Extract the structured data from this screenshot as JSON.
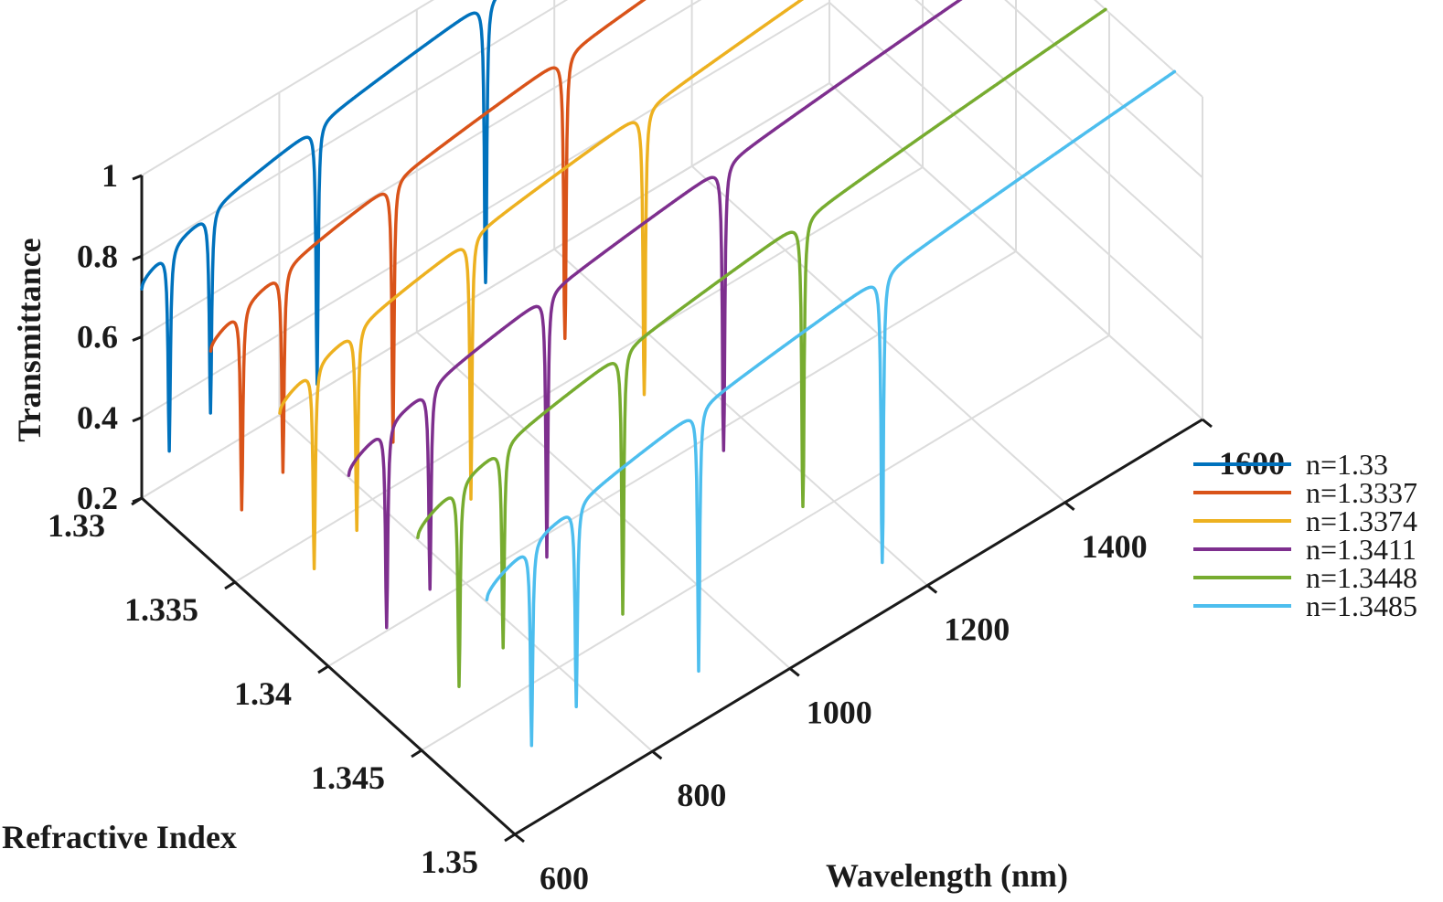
{
  "chart_data": {
    "type": "line",
    "title": "",
    "xlabel": "Wavelength (nm)",
    "ylabel": "Refractive Index",
    "zlabel": "Transmittance",
    "xlim": [
      600,
      1600
    ],
    "ylim": [
      1.33,
      1.35
    ],
    "zlim": [
      0.2,
      1
    ],
    "xticks": [
      "600",
      "800",
      "1000",
      "1200",
      "1400",
      "1600"
    ],
    "yticks": [
      "1.33",
      "1.335",
      "1.34",
      "1.345",
      "1.35"
    ],
    "zticks": [
      "0.2",
      "0.4",
      "0.6",
      "0.8",
      "1"
    ],
    "grid": true,
    "legend_position": "right",
    "series": [
      {
        "name": "n=1.33",
        "n": 1.33,
        "color": "#0072BD",
        "dips": [
          640,
          700,
          855,
          1100
        ],
        "baseline_start": 0.72,
        "baseline_end": 1.0
      },
      {
        "name": "n=1.3337",
        "n": 1.3337,
        "color": "#D95319",
        "dips": [
          645,
          705,
          865,
          1115
        ],
        "baseline_start": 0.72,
        "baseline_end": 1.0
      },
      {
        "name": "n=1.3374",
        "n": 1.3374,
        "color": "#EDB120",
        "dips": [
          650,
          712,
          878,
          1130
        ],
        "baseline_start": 0.72,
        "baseline_end": 1.0
      },
      {
        "name": "n=1.3411",
        "n": 1.3411,
        "color": "#7E2F8E",
        "dips": [
          655,
          718,
          888,
          1145
        ],
        "baseline_start": 0.72,
        "baseline_end": 1.0
      },
      {
        "name": "n=1.3448",
        "n": 1.3448,
        "color": "#77AC30",
        "dips": [
          660,
          724,
          898,
          1160
        ],
        "baseline_start": 0.72,
        "baseline_end": 1.0
      },
      {
        "name": "n=1.3485",
        "n": 1.3485,
        "color": "#4DBEEE",
        "dips": [
          665,
          730,
          908,
          1175
        ],
        "baseline_start": 0.72,
        "baseline_end": 1.0
      }
    ]
  }
}
